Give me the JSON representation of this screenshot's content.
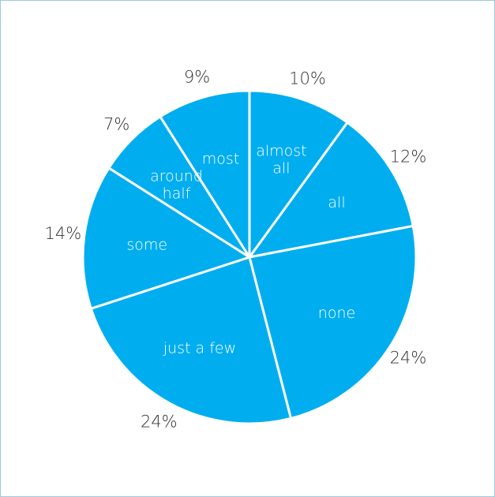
{
  "chart_data": {
    "type": "pie",
    "start_angle_deg": 0,
    "direction": "clockwise",
    "color": "#00aeef",
    "slices": [
      {
        "label": [
          "almost",
          "all"
        ],
        "value": 10,
        "display": "10%"
      },
      {
        "label": [
          "all"
        ],
        "value": 12,
        "display": "12%"
      },
      {
        "label": [
          "none"
        ],
        "value": 24,
        "display": "24%"
      },
      {
        "label": [
          "just a few"
        ],
        "value": 24,
        "display": "24%"
      },
      {
        "label": [
          "some"
        ],
        "value": 14,
        "display": "14%"
      },
      {
        "label": [
          "around",
          "half"
        ],
        "value": 7,
        "display": "7%"
      },
      {
        "label": [
          "most"
        ],
        "value": 9,
        "display": "9%"
      }
    ]
  }
}
